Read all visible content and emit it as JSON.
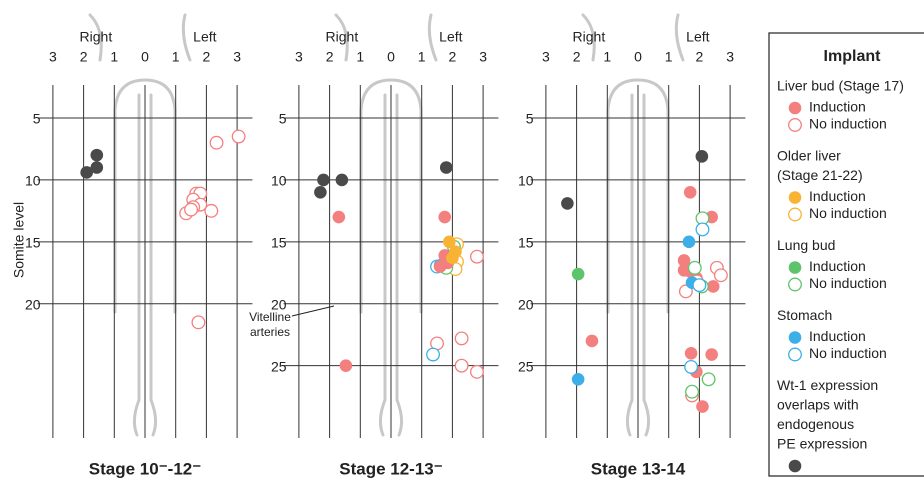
{
  "chart_data": [
    {
      "type": "scatter",
      "title": "Stage 10⁻-12⁻",
      "x_side_labels": [
        "Right",
        "Left"
      ],
      "ylabel": "Somite level",
      "xlim": [
        -3.5,
        3.5
      ],
      "ylim": [
        31,
        2.5
      ],
      "xticks": [
        {
          "value": -3,
          "label": "3"
        },
        {
          "value": -2,
          "label": "2"
        },
        {
          "value": -1,
          "label": "1"
        },
        0,
        1,
        2,
        3
      ],
      "yticks": [
        5,
        10,
        15,
        20
      ],
      "series": [
        {
          "group": 4,
          "filled": true,
          "x": [
            -1.57,
            -1.57,
            -1.9
          ],
          "y": [
            8.0,
            9.0,
            9.4
          ]
        },
        {
          "group": 0,
          "filled": false,
          "x": [
            3.05,
            2.33,
            1.67,
            1.8,
            1.57,
            1.8,
            1.57,
            2.16,
            1.34,
            1.5,
            1.74
          ],
          "y": [
            6.5,
            7.0,
            11.1,
            11.1,
            11.6,
            12.0,
            12.2,
            12.5,
            12.7,
            12.4,
            21.5
          ]
        }
      ]
    },
    {
      "type": "scatter",
      "title": "Stage 12-13⁻",
      "x_side_labels": [
        "Right",
        "Left"
      ],
      "annotation": [
        "Vitelline",
        "arteries"
      ],
      "xlim": [
        -3.5,
        3.5
      ],
      "ylim": [
        31,
        2.5
      ],
      "xticks": [
        {
          "value": -3,
          "label": "3"
        },
        {
          "value": -2,
          "label": "2"
        },
        {
          "value": -1,
          "label": "1"
        },
        0,
        1,
        2,
        3
      ],
      "yticks": [
        5,
        10,
        15,
        20,
        25
      ],
      "series": [
        {
          "group": 4,
          "filled": true,
          "x": [
            -2.2,
            -1.6,
            -2.3,
            1.8
          ],
          "y": [
            10,
            10,
            11,
            9
          ]
        },
        {
          "group": 0,
          "filled": false,
          "x": [
            2.8,
            2.3,
            1.5,
            2.3,
            2.8
          ],
          "y": [
            16.2,
            22.8,
            23.2,
            25,
            25.5
          ]
        },
        {
          "group": 1,
          "filled": false,
          "x": [
            2.15,
            2.15,
            2.1
          ],
          "y": [
            15.2,
            16.6,
            17.2
          ]
        },
        {
          "group": 2,
          "filled": false,
          "x": [
            2.05,
            1.8
          ],
          "y": [
            15.4,
            17.1
          ]
        },
        {
          "group": 3,
          "filled": false,
          "x": [
            1.5,
            1.37
          ],
          "y": [
            17,
            24.1
          ]
        },
        {
          "group": 3,
          "filled": true,
          "x": [
            1.6
          ],
          "y": [
            16.9
          ]
        },
        {
          "group": 0,
          "filled": true,
          "x": [
            -1.7,
            1.75,
            -1.47,
            1.75,
            1.85,
            1.6
          ],
          "y": [
            13,
            13,
            25,
            16.1,
            16.7,
            17
          ]
        },
        {
          "group": 1,
          "filled": true,
          "x": [
            1.9,
            2.1,
            2.0
          ],
          "y": [
            15,
            15.8,
            16.3
          ]
        }
      ]
    },
    {
      "type": "scatter",
      "title": "Stage 13-14",
      "x_side_labels": [
        "Right",
        "Left"
      ],
      "xlim": [
        -3.5,
        3.5
      ],
      "ylim": [
        31,
        2.5
      ],
      "xticks": [
        {
          "value": -3,
          "label": "3"
        },
        {
          "value": -2,
          "label": "2"
        },
        {
          "value": -1,
          "label": "1"
        },
        0,
        1,
        2,
        3
      ],
      "yticks": [
        5,
        10,
        15,
        20,
        25
      ],
      "series": [
        {
          "group": 4,
          "filled": true,
          "x": [
            -2.3,
            2.08
          ],
          "y": [
            11.9,
            8.1
          ]
        },
        {
          "group": 0,
          "filled": true,
          "x": [
            1.7,
            2.4,
            -1.5,
            1.5,
            1.7,
            1.9,
            1.5,
            2.45,
            1.73,
            2.4,
            1.9,
            2.1
          ],
          "y": [
            11,
            13,
            23,
            16.5,
            17.4,
            17.9,
            17.3,
            18.6,
            24,
            24.1,
            25.5,
            28.3
          ]
        },
        {
          "group": 0,
          "filled": false,
          "x": [
            2.57,
            2.7,
            1.92,
            1.56,
            1.76
          ],
          "y": [
            17.1,
            17.7,
            18.2,
            19,
            27.4
          ]
        },
        {
          "group": 2,
          "filled": true,
          "x": [
            -1.95
          ],
          "y": [
            17.6
          ]
        },
        {
          "group": 2,
          "filled": false,
          "x": [
            2.1,
            1.85,
            2.08,
            2.3,
            1.76
          ],
          "y": [
            13.1,
            17.1,
            18.6,
            26.1,
            27.1
          ]
        },
        {
          "group": 3,
          "filled": true,
          "x": [
            1.66,
            -1.95,
            1.76
          ],
          "y": [
            15.0,
            26.1,
            18.3
          ]
        },
        {
          "group": 3,
          "filled": false,
          "x": [
            2.1,
            2.0,
            1.73
          ],
          "y": [
            14,
            18.5,
            25.1
          ]
        }
      ]
    }
  ],
  "legend": {
    "title": "Implant",
    "groups": [
      {
        "label": [
          "Liver bud (Stage 17)"
        ],
        "color": "#f47f7f",
        "items": [
          "Induction",
          "No induction"
        ]
      },
      {
        "label": [
          "Older liver",
          "(Stage 21-22)"
        ],
        "color": "#f8b334",
        "items": [
          "Induction",
          "No induction"
        ]
      },
      {
        "label": [
          "Lung bud"
        ],
        "color": "#5ec46b",
        "items": [
          "Induction",
          "No induction"
        ]
      },
      {
        "label": [
          "Stomach"
        ],
        "color": "#3cafe9",
        "items": [
          "Induction",
          "No induction"
        ]
      },
      {
        "label": [
          "Wt-1 expression",
          "overlaps with",
          "endogenous",
          "PE expression"
        ],
        "color": "#4a4a4a",
        "items": []
      }
    ]
  }
}
